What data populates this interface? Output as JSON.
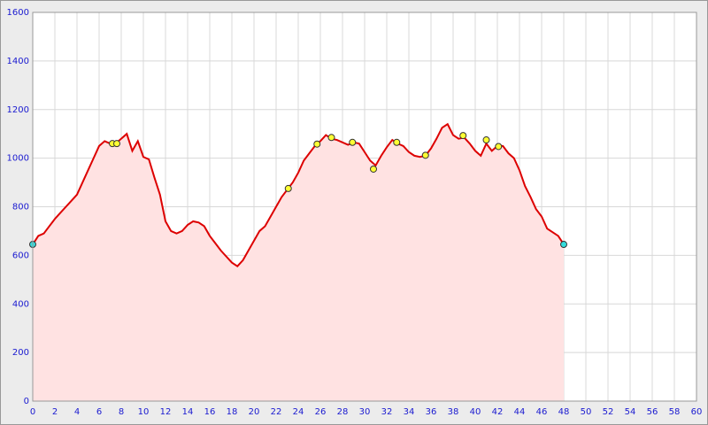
{
  "chart_data": {
    "type": "area",
    "x": [
      0,
      0.5,
      1,
      1.5,
      2,
      2.5,
      3,
      3.5,
      4,
      4.5,
      5,
      5.5,
      6,
      6.5,
      7,
      7.5,
      8,
      8.5,
      9,
      9.5,
      10,
      10.5,
      11,
      11.5,
      12,
      12.5,
      13,
      13.5,
      14,
      14.5,
      15,
      15.5,
      16,
      16.5,
      17,
      17.5,
      18,
      18.5,
      19,
      19.5,
      20,
      20.5,
      21,
      21.5,
      22,
      22.5,
      23,
      23.5,
      24,
      24.5,
      25,
      25.5,
      26,
      26.5,
      27,
      27.5,
      28,
      28.5,
      29,
      29.5,
      30,
      30.5,
      31,
      31.5,
      32,
      32.5,
      33,
      33.5,
      34,
      34.5,
      35,
      35.5,
      36,
      36.5,
      37,
      37.5,
      38,
      38.5,
      39,
      39.5,
      40,
      40.5,
      41,
      41.5,
      42,
      42.5,
      43,
      43.5,
      44,
      44.5,
      45,
      45.5,
      46,
      46.5,
      47,
      47.5,
      48
    ],
    "values": [
      645,
      680,
      690,
      720,
      750,
      775,
      800,
      825,
      850,
      900,
      950,
      1000,
      1050,
      1070,
      1060,
      1060,
      1080,
      1100,
      1030,
      1070,
      1005,
      995,
      920,
      850,
      740,
      700,
      690,
      700,
      725,
      740,
      735,
      720,
      680,
      650,
      620,
      595,
      570,
      555,
      580,
      620,
      660,
      700,
      720,
      760,
      800,
      840,
      870,
      900,
      940,
      990,
      1020,
      1050,
      1070,
      1095,
      1080,
      1075,
      1065,
      1055,
      1065,
      1060,
      1025,
      990,
      970,
      1010,
      1045,
      1075,
      1060,
      1050,
      1025,
      1010,
      1005,
      1010,
      1040,
      1080,
      1125,
      1140,
      1095,
      1080,
      1085,
      1060,
      1030,
      1010,
      1060,
      1030,
      1050,
      1050,
      1020,
      1000,
      950,
      885,
      840,
      790,
      760,
      710,
      695,
      680,
      645
    ],
    "color": "#dd0000",
    "fill": "#ffe2e2",
    "markers": [
      {
        "color": "#ffff33",
        "x": [
          7.2,
          7.6,
          23.1,
          25.7,
          27,
          28.9,
          30.8,
          32.9,
          35.5,
          38.9,
          41,
          42.1
        ],
        "y": [
          1060,
          1060,
          875,
          1058,
          1085,
          1065,
          955,
          1065,
          1012,
          1093,
          1075,
          1048
        ]
      },
      {
        "color": "#33dddd",
        "x": [
          0,
          48
        ],
        "y": [
          645,
          645
        ]
      }
    ],
    "xlim": [
      0,
      60
    ],
    "ylim": [
      0,
      1600
    ],
    "xticks": [
      0,
      2,
      4,
      6,
      8,
      10,
      12,
      14,
      16,
      18,
      20,
      22,
      24,
      26,
      28,
      30,
      32,
      34,
      36,
      38,
      40,
      42,
      44,
      46,
      48,
      50,
      52,
      54,
      56,
      58,
      60
    ],
    "yticks": [
      0,
      200,
      400,
      600,
      800,
      1000,
      1200,
      1400,
      1600
    ],
    "grid": true
  }
}
